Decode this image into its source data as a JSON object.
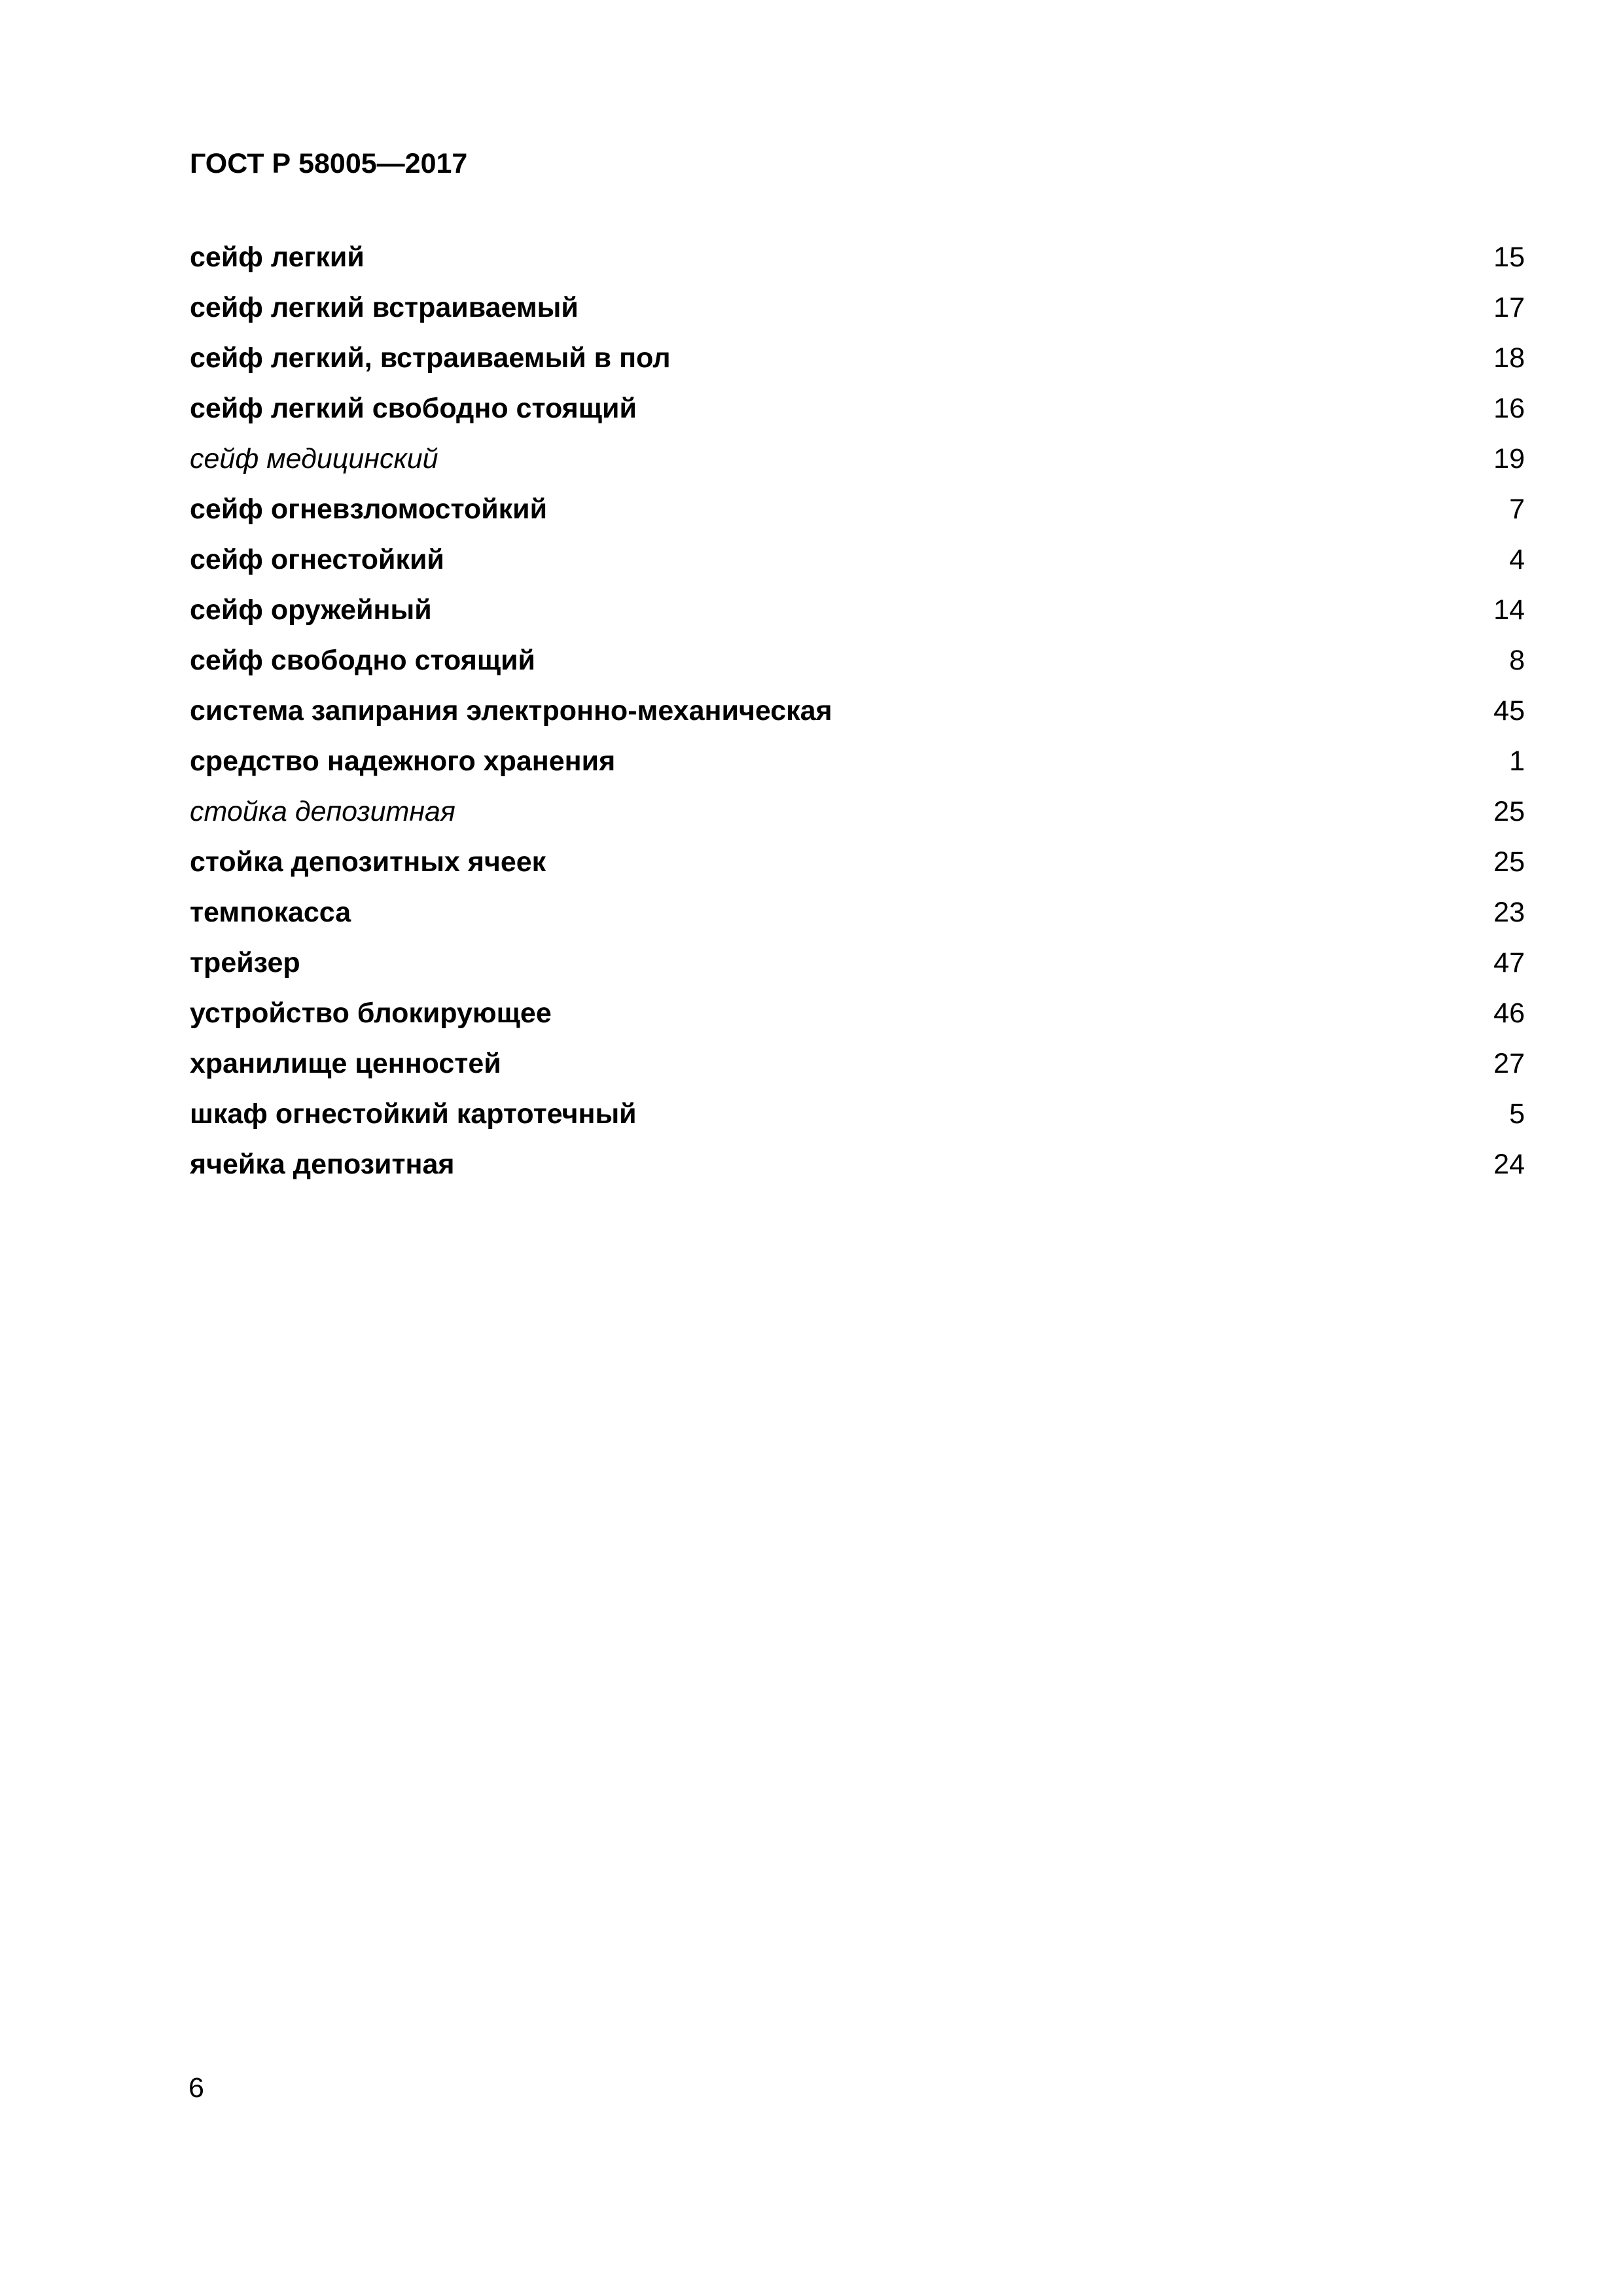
{
  "page": {
    "header": "ГОСТ Р 58005—2017",
    "page_number": "6"
  },
  "index": {
    "entries": [
      {
        "term": "сейф легкий",
        "page": "15",
        "style": "bold"
      },
      {
        "term": "сейф легкий встраиваемый",
        "page": "17",
        "style": "bold"
      },
      {
        "term": "сейф легкий, встраиваемый в пол",
        "page": "18",
        "style": "bold"
      },
      {
        "term": "сейф легкий свободно стоящий",
        "page": "16",
        "style": "bold"
      },
      {
        "term": "сейф медицинский",
        "page": "19",
        "style": "italic"
      },
      {
        "term": "сейф огневзломостойкий",
        "page": "7",
        "style": "bold"
      },
      {
        "term": "сейф огнестойкий",
        "page": "4",
        "style": "bold"
      },
      {
        "term": "сейф оружейный",
        "page": "14",
        "style": "bold"
      },
      {
        "term": "сейф свободно стоящий",
        "page": "8",
        "style": "bold"
      },
      {
        "term": "система запирания электронно-механическая",
        "page": "45",
        "style": "bold"
      },
      {
        "term": "средство надежного хранения",
        "page": "1",
        "style": "bold"
      },
      {
        "term": "стойка депозитная",
        "page": "25",
        "style": "italic"
      },
      {
        "term": "стойка депозитных ячеек",
        "page": "25",
        "style": "bold"
      },
      {
        "term": "темпокасса",
        "page": "23",
        "style": "bold"
      },
      {
        "term": "трейзер",
        "page": "47",
        "style": "bold"
      },
      {
        "term": "устройство блокирующее",
        "page": "46",
        "style": "bold"
      },
      {
        "term": "хранилище ценностей",
        "page": "27",
        "style": "bold"
      },
      {
        "term": "шкаф огнестойкий картотечный",
        "page": "5",
        "style": "bold"
      },
      {
        "term": "ячейка депозитная",
        "page": "24",
        "style": "bold"
      }
    ]
  }
}
